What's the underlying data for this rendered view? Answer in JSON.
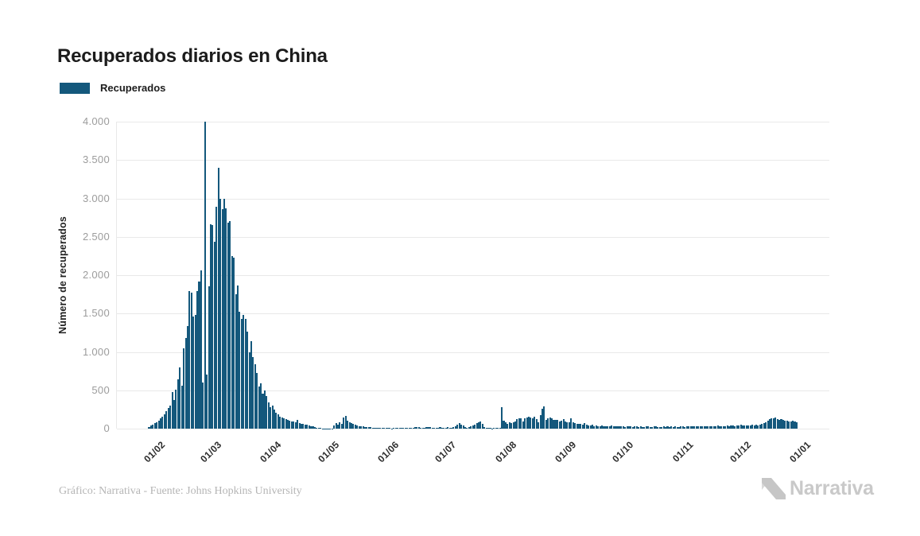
{
  "header": {
    "title": "Recuperados diarios en China"
  },
  "legend": {
    "label": "Recuperados",
    "swatch_color": "#14587c"
  },
  "footer": {
    "credit": "Gráfico: Narrativa - Fuente: Johns Hopkins University",
    "brand": "Narrativa"
  },
  "colors": {
    "bar": "#14587c",
    "grid": "#e9e9e9",
    "y_tick_text": "#9c9c9c",
    "x_tick_text": "#2c2c2c",
    "title_text": "#1c1c1c",
    "credit_text": "#b5b5b5",
    "brand_text": "#c9c9c9"
  },
  "chart_data": {
    "type": "bar",
    "title": "Recuperados diarios en China",
    "series_name": "Recuperados",
    "xlabel": "",
    "ylabel": "Número de recuperados",
    "ylim": [
      0,
      4000
    ],
    "grid": true,
    "legend_position": "top-left",
    "x_start_date": "26/01/2020",
    "x_end_date": "27/12/2020",
    "x_tick_labels": [
      "01/02",
      "01/03",
      "01/04",
      "01/05",
      "01/06",
      "01/07",
      "01/08",
      "01/09",
      "01/10",
      "01/11",
      "01/12",
      "01/01"
    ],
    "x_tick_day_offsets": [
      6,
      35,
      66,
      96,
      127,
      157,
      188,
      219,
      249,
      280,
      310,
      341
    ],
    "y_tick_labels": [
      "4.000",
      "3.500",
      "3.000",
      "2.500",
      "2.000",
      "1.500",
      "1.000",
      "500",
      "0"
    ],
    "y_tick_values": [
      4000,
      3500,
      3000,
      2500,
      2000,
      1500,
      1000,
      500,
      0
    ],
    "values": [
      25,
      40,
      55,
      70,
      85,
      100,
      130,
      160,
      185,
      230,
      265,
      300,
      475,
      370,
      510,
      645,
      800,
      560,
      1045,
      1180,
      1335,
      1790,
      1770,
      1460,
      1480,
      1790,
      1920,
      2060,
      600,
      4000,
      700,
      1850,
      2665,
      2650,
      2440,
      2890,
      3400,
      2990,
      2860,
      2990,
      2870,
      2680,
      2700,
      2250,
      2230,
      1750,
      1870,
      1520,
      1430,
      1480,
      1430,
      1260,
      1000,
      1140,
      930,
      840,
      730,
      550,
      590,
      460,
      500,
      430,
      340,
      280,
      300,
      250,
      210,
      190,
      160,
      150,
      140,
      120,
      110,
      100,
      95,
      90,
      80,
      110,
      70,
      65,
      60,
      55,
      50,
      45,
      35,
      30,
      20,
      12,
      8,
      6,
      5,
      5,
      4,
      4,
      3,
      3,
      40,
      70,
      50,
      85,
      60,
      145,
      165,
      105,
      85,
      75,
      60,
      50,
      40,
      35,
      30,
      28,
      25,
      22,
      20,
      18,
      15,
      14,
      12,
      12,
      10,
      10,
      8,
      8,
      7,
      6,
      5,
      8,
      10,
      12,
      8,
      6,
      10,
      14,
      9,
      7,
      6,
      12,
      18,
      22,
      16,
      10,
      8,
      12,
      20,
      25,
      18,
      14,
      10,
      8,
      12,
      16,
      10,
      8,
      14,
      18,
      12,
      15,
      20,
      35,
      50,
      70,
      55,
      40,
      25,
      15,
      17,
      30,
      45,
      50,
      70,
      85,
      95,
      60,
      25,
      10,
      8,
      6,
      5,
      8,
      10,
      12,
      15,
      280,
      105,
      85,
      60,
      80,
      75,
      80,
      95,
      120,
      140,
      135,
      90,
      130,
      150,
      160,
      150,
      140,
      155,
      120,
      85,
      180,
      260,
      290,
      110,
      130,
      150,
      130,
      115,
      112,
      110,
      90,
      105,
      120,
      95,
      88,
      80,
      130,
      85,
      70,
      60,
      65,
      60,
      55,
      70,
      50,
      45,
      40,
      55,
      35,
      40,
      35,
      30,
      45,
      35,
      30,
      35,
      30,
      40,
      30,
      28,
      32,
      30,
      28,
      30,
      26,
      30,
      28,
      30,
      25,
      32,
      28,
      24,
      30,
      26,
      22,
      28,
      32,
      26,
      24,
      30,
      28,
      25,
      22,
      26,
      30,
      24,
      28,
      26,
      30,
      25,
      28,
      24,
      26,
      30,
      28,
      25,
      30,
      28,
      32,
      30,
      35,
      28,
      30,
      34,
      30,
      28,
      35,
      32,
      30,
      36,
      32,
      30,
      38,
      34,
      32,
      30,
      36,
      40,
      35,
      38,
      42,
      36,
      40,
      45,
      50,
      42,
      38,
      42,
      45,
      40,
      48,
      44,
      50,
      46,
      55,
      60,
      70,
      86,
      104,
      120,
      138,
      131,
      145,
      120,
      114,
      120,
      114,
      104,
      100,
      95,
      90,
      100,
      90,
      86
    ]
  }
}
